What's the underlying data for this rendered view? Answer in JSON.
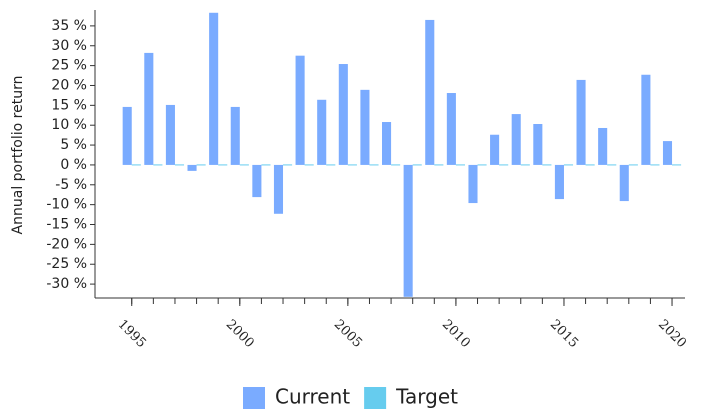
{
  "chart_data": {
    "type": "bar",
    "y_label": "Annual portfolio return",
    "x": [
      1995,
      1996,
      1997,
      1998,
      1999,
      2000,
      2001,
      2002,
      2003,
      2004,
      2005,
      2006,
      2007,
      2008,
      2009,
      2010,
      2011,
      2012,
      2013,
      2014,
      2015,
      2016,
      2017,
      2018,
      2019,
      2020
    ],
    "series": [
      {
        "name": "Current",
        "color": "#7aabff",
        "values": [
          14.6,
          28.2,
          15.1,
          -1.5,
          38.3,
          14.6,
          -8.1,
          -12.3,
          27.5,
          16.4,
          25.4,
          18.9,
          10.8,
          -33.2,
          36.5,
          18.1,
          -9.6,
          7.6,
          12.8,
          10.3,
          -8.6,
          21.4,
          9.3,
          -9.1,
          22.7,
          6.0
        ]
      },
      {
        "name": "Target",
        "color": "#66ccee",
        "values": [
          0,
          0,
          0,
          0,
          0,
          0,
          0,
          0,
          0,
          0,
          0,
          0,
          0,
          0,
          0,
          0,
          0,
          0,
          0,
          0,
          0,
          0,
          0,
          0,
          0,
          0
        ]
      }
    ],
    "xlim": [
      1993.3,
      2020.6
    ],
    "xticks": [
      1995,
      2000,
      2005,
      2010,
      2015,
      2020
    ],
    "ylim": [
      -33.5,
      39
    ],
    "yticks": [
      {
        "value": -30,
        "label": "-30 %"
      },
      {
        "value": -25,
        "label": "-25 %"
      },
      {
        "value": -20,
        "label": "-20 %"
      },
      {
        "value": -15,
        "label": "-15 %"
      },
      {
        "value": -10,
        "label": "-10 %"
      },
      {
        "value": -5,
        "label": "-5 %"
      },
      {
        "value": 0,
        "label": "0 %"
      },
      {
        "value": 5,
        "label": "5 %"
      },
      {
        "value": 10,
        "label": "10 %"
      },
      {
        "value": 15,
        "label": "15 %"
      },
      {
        "value": 20,
        "label": "20 %"
      },
      {
        "value": 25,
        "label": "25 %"
      },
      {
        "value": 30,
        "label": "30 %"
      },
      {
        "value": 35,
        "label": "35 %"
      }
    ],
    "grid": false,
    "legend": "bottom"
  }
}
